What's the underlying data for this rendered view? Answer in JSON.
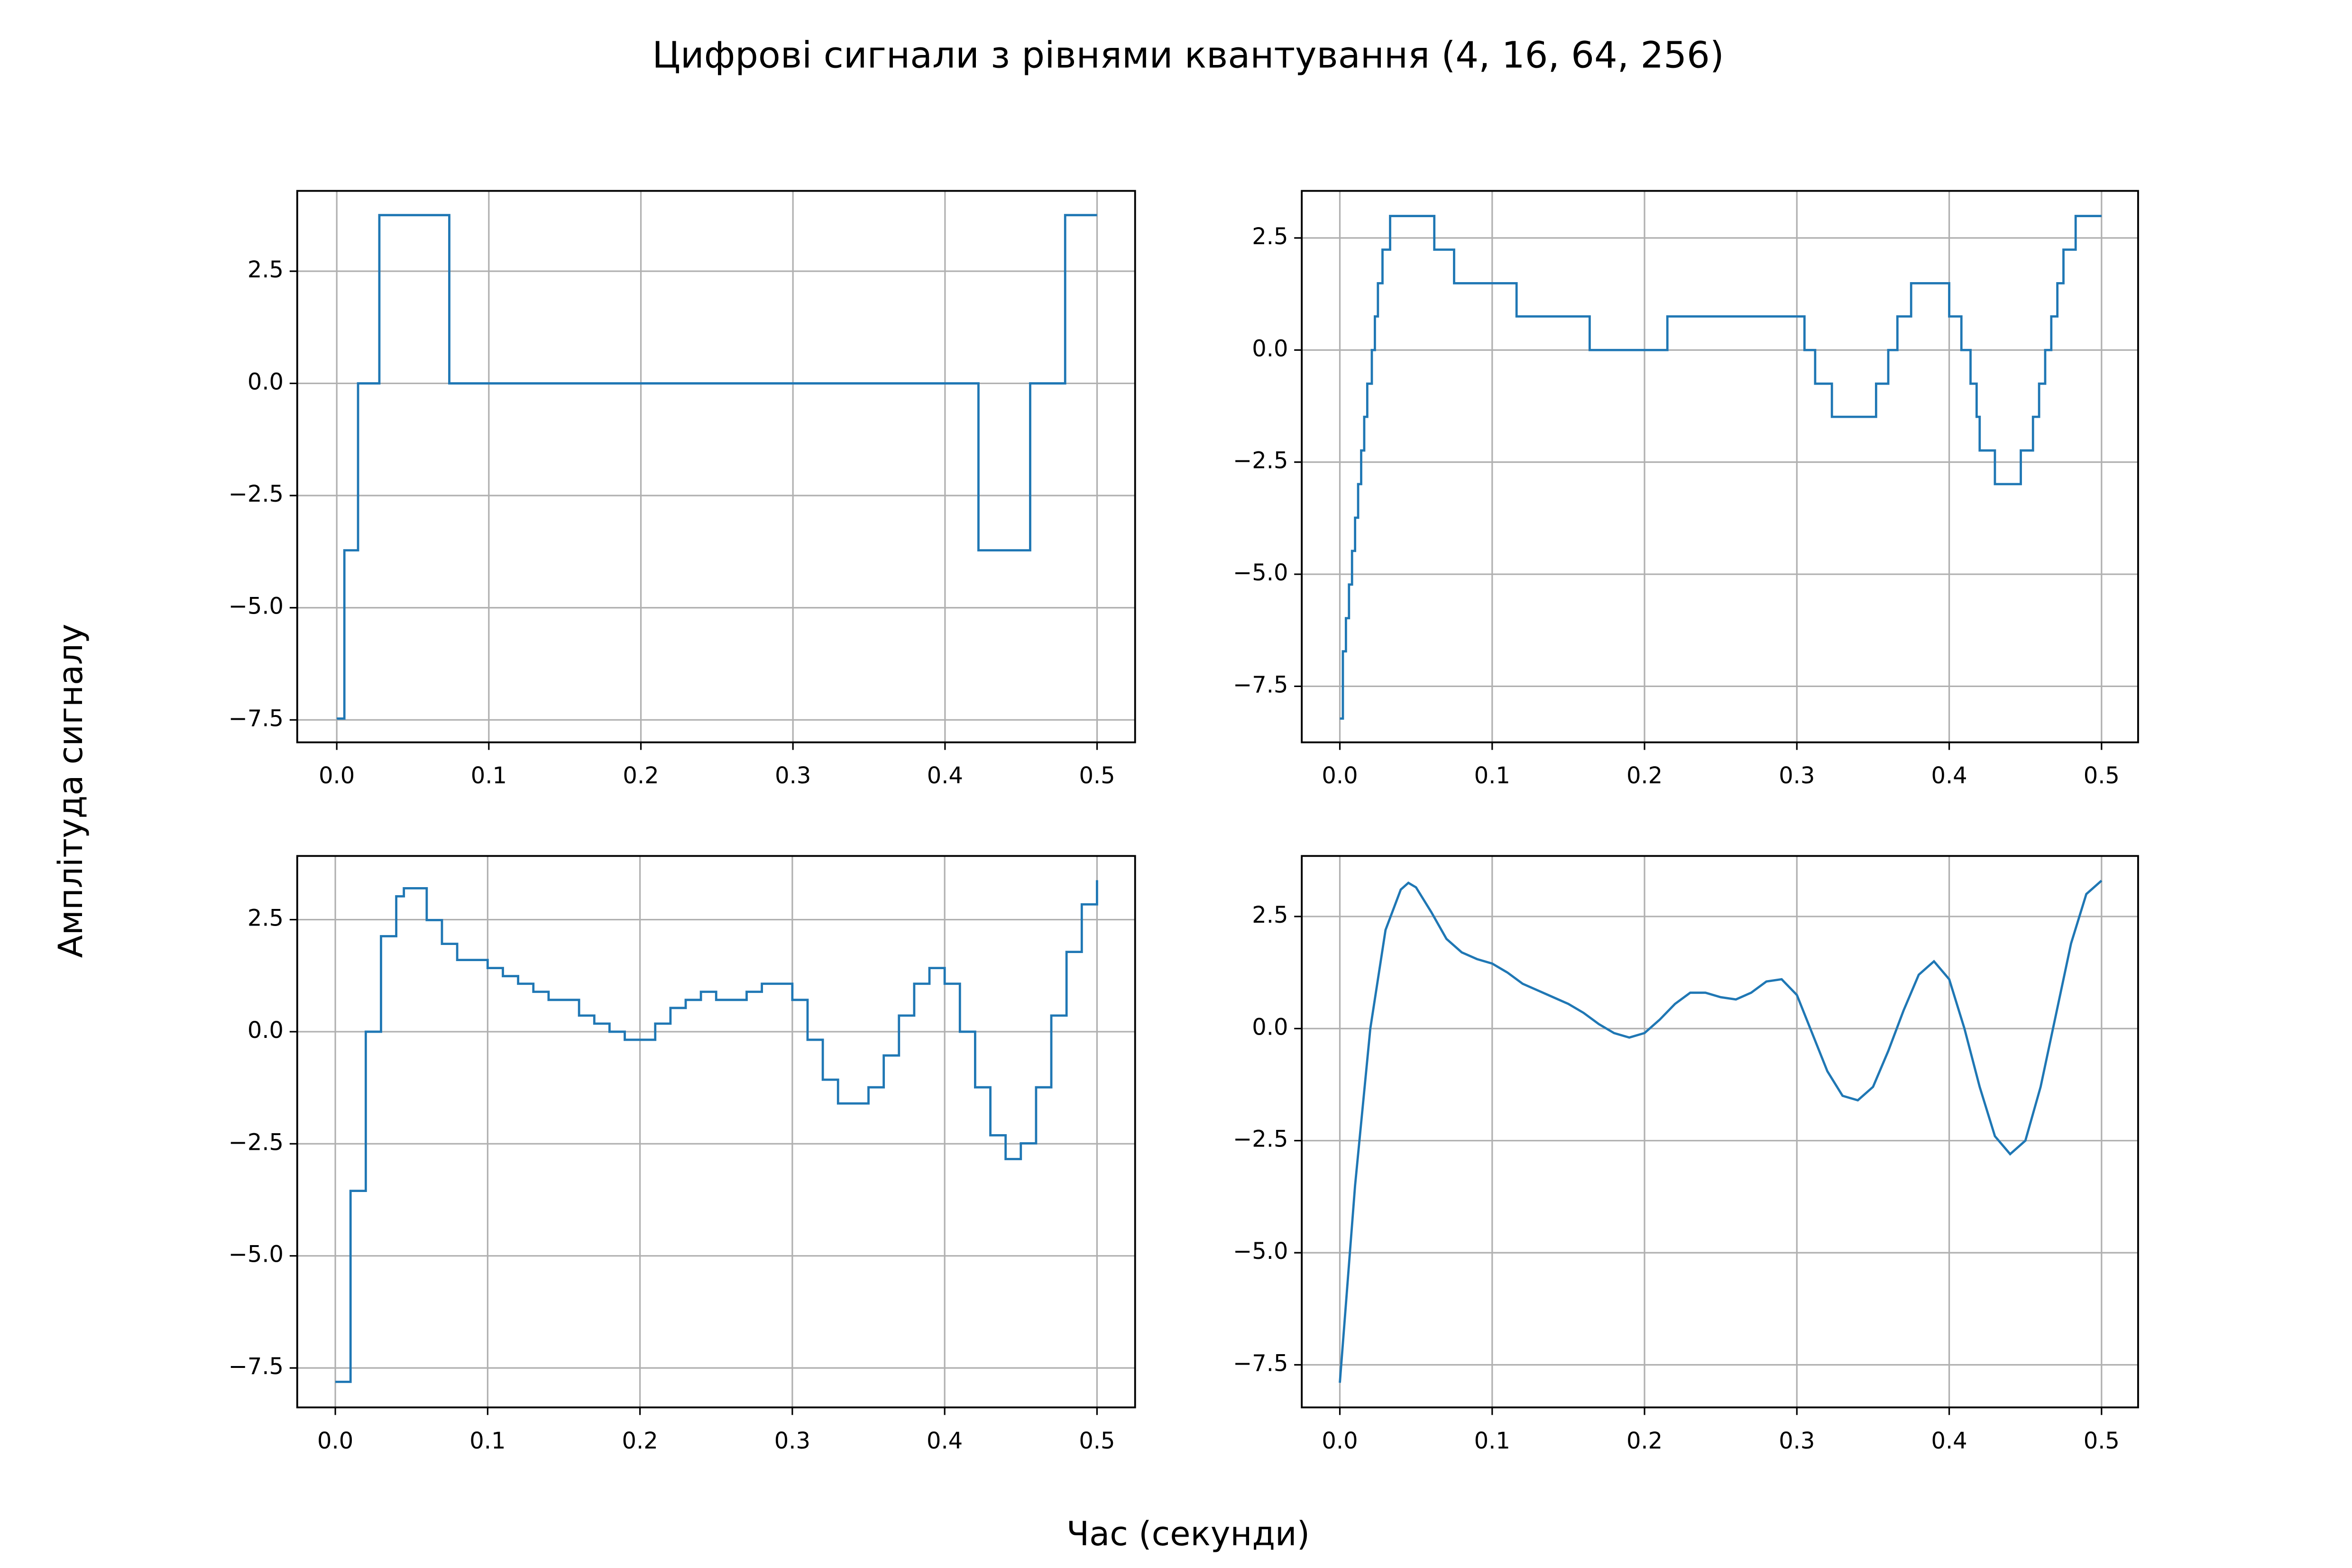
{
  "title": "Цифрові сигнали з рівнями квантування (4, 16, 64, 256)",
  "x_label": "Час (секунди)",
  "y_label": "Амплітуда сигналу",
  "chart_data": [
    {
      "type": "line",
      "drawstyle": "steps-post",
      "color": "#1f77b4",
      "grid": true,
      "x": [
        0,
        0.005,
        0.014,
        0.028,
        0.074,
        0.422,
        0.456,
        0.479,
        0.5
      ],
      "values": [
        -7.47,
        -3.72,
        0,
        3.75,
        0,
        -3.72,
        0,
        3.75,
        3.75
      ],
      "xlim": [
        -0.026,
        0.525
      ],
      "ylim": [
        -8.0,
        4.29
      ],
      "xticks": [
        {
          "value": 0,
          "label": "0.0"
        },
        0.1,
        0.2,
        0.3,
        0.4,
        0.5
      ],
      "yticks": [
        {
          "value": -7.5,
          "label": "−7.5"
        },
        {
          "value": -5,
          "label": "−5.0"
        },
        {
          "value": -2.5,
          "label": "−2.5"
        },
        {
          "value": 0,
          "label": "0.0"
        },
        2.5
      ]
    },
    {
      "type": "line",
      "drawstyle": "steps-post",
      "color": "#1f77b4",
      "grid": true,
      "x": [
        0,
        0.002,
        0.004,
        0.006,
        0.008,
        0.01,
        0.012,
        0.014,
        0.016,
        0.018,
        0.021,
        0.023,
        0.025,
        0.028,
        0.033,
        0.062,
        0.075,
        0.116,
        0.164,
        0.215,
        0.305,
        0.312,
        0.323,
        0.352,
        0.36,
        0.366,
        0.375,
        0.4,
        0.408,
        0.414,
        0.418,
        0.42,
        0.43,
        0.447,
        0.455,
        0.459,
        0.463,
        0.467,
        0.471,
        0.475,
        0.483,
        0.5
      ],
      "values": [
        -8.22,
        -6.72,
        -5.98,
        -5.23,
        -4.48,
        -3.74,
        -2.99,
        -2.24,
        -1.49,
        -0.75,
        0,
        0.75,
        1.49,
        2.24,
        2.99,
        2.24,
        1.49,
        0.75,
        0,
        0.75,
        0,
        -0.75,
        -1.49,
        -0.75,
        0,
        0.75,
        1.49,
        0.75,
        0,
        -0.75,
        -1.49,
        -2.24,
        -2.99,
        -2.24,
        -1.49,
        -0.75,
        0,
        0.75,
        1.49,
        2.24,
        2.99,
        2.99
      ],
      "xlim": [
        -0.025,
        0.524
      ],
      "ylim": [
        -8.75,
        3.55
      ],
      "xticks": [
        {
          "value": 0,
          "label": "0.0"
        },
        0.1,
        0.2,
        0.3,
        0.4,
        0.5
      ],
      "yticks": [
        {
          "value": -7.5,
          "label": "−7.5"
        },
        {
          "value": -5,
          "label": "−5.0"
        },
        {
          "value": -2.5,
          "label": "−2.5"
        },
        {
          "value": 0,
          "label": "0.0"
        },
        2.5
      ]
    },
    {
      "type": "line",
      "drawstyle": "steps-post",
      "color": "#1f77b4",
      "grid": true,
      "x": [
        0,
        0.01,
        0.02,
        0.03,
        0.04,
        0.045,
        0.05,
        0.06,
        0.07,
        0.08,
        0.09,
        0.1,
        0.11,
        0.12,
        0.13,
        0.14,
        0.15,
        0.16,
        0.17,
        0.18,
        0.19,
        0.2,
        0.21,
        0.22,
        0.23,
        0.24,
        0.25,
        0.26,
        0.27,
        0.28,
        0.29,
        0.3,
        0.31,
        0.32,
        0.33,
        0.34,
        0.35,
        0.36,
        0.37,
        0.38,
        0.39,
        0.4,
        0.41,
        0.42,
        0.43,
        0.44,
        0.45,
        0.46,
        0.47,
        0.48,
        0.49,
        0.5
      ],
      "values": [
        -7.81,
        -3.55,
        0,
        2.13,
        3.02,
        3.2,
        3.2,
        2.49,
        1.96,
        1.6,
        1.6,
        1.42,
        1.24,
        1.07,
        0.89,
        0.71,
        0.71,
        0.36,
        0.18,
        0,
        -0.18,
        -0.18,
        0.18,
        0.53,
        0.71,
        0.89,
        0.71,
        0.71,
        0.89,
        1.07,
        1.07,
        0.71,
        -0.18,
        -1.07,
        -1.6,
        -1.6,
        -1.24,
        -0.53,
        0.36,
        1.07,
        1.42,
        1.07,
        0,
        -1.24,
        -2.31,
        -2.84,
        -2.49,
        -1.24,
        0.36,
        1.78,
        2.84,
        3.38
      ],
      "xlim": [
        -0.025,
        0.525
      ],
      "ylim": [
        -8.38,
        3.92
      ],
      "xticks": [
        {
          "value": 0,
          "label": "0.0"
        },
        0.1,
        0.2,
        0.3,
        0.4,
        0.5
      ],
      "yticks": [
        {
          "value": -7.5,
          "label": "−7.5"
        },
        {
          "value": -5,
          "label": "−5.0"
        },
        {
          "value": -2.5,
          "label": "−2.5"
        },
        {
          "value": 0,
          "label": "0.0"
        },
        2.5
      ]
    },
    {
      "type": "line",
      "color": "#1f77b4",
      "grid": true,
      "x": [
        0,
        0.01,
        0.02,
        0.03,
        0.04,
        0.045,
        0.05,
        0.06,
        0.07,
        0.08,
        0.09,
        0.1,
        0.11,
        0.12,
        0.13,
        0.14,
        0.15,
        0.16,
        0.17,
        0.18,
        0.19,
        0.2,
        0.21,
        0.22,
        0.23,
        0.24,
        0.25,
        0.26,
        0.27,
        0.28,
        0.29,
        0.3,
        0.31,
        0.32,
        0.33,
        0.34,
        0.35,
        0.36,
        0.37,
        0.38,
        0.39,
        0.4,
        0.41,
        0.42,
        0.43,
        0.44,
        0.45,
        0.46,
        0.47,
        0.48,
        0.49,
        0.5
      ],
      "values": [
        -7.9,
        -3.5,
        0,
        2.2,
        3.1,
        3.25,
        3.15,
        2.6,
        2.0,
        1.7,
        1.55,
        1.45,
        1.25,
        1.0,
        0.85,
        0.7,
        0.55,
        0.35,
        0.1,
        -0.1,
        -0.2,
        -0.1,
        0.2,
        0.55,
        0.8,
        0.8,
        0.7,
        0.65,
        0.8,
        1.05,
        1.1,
        0.75,
        -0.1,
        -0.95,
        -1.5,
        -1.6,
        -1.3,
        -0.5,
        0.4,
        1.2,
        1.5,
        1.1,
        0,
        -1.3,
        -2.4,
        -2.8,
        -2.5,
        -1.3,
        0.3,
        1.9,
        3.0,
        3.3
      ],
      "xlim": [
        -0.025,
        0.524
      ],
      "ylim": [
        -8.45,
        3.85
      ],
      "xticks": [
        {
          "value": 0,
          "label": "0.0"
        },
        0.1,
        0.2,
        0.3,
        0.4,
        0.5
      ],
      "yticks": [
        {
          "value": -7.5,
          "label": "−7.5"
        },
        {
          "value": -5,
          "label": "−5.0"
        },
        {
          "value": -2.5,
          "label": "−2.5"
        },
        {
          "value": 0,
          "label": "0.0"
        },
        2.5
      ]
    }
  ]
}
